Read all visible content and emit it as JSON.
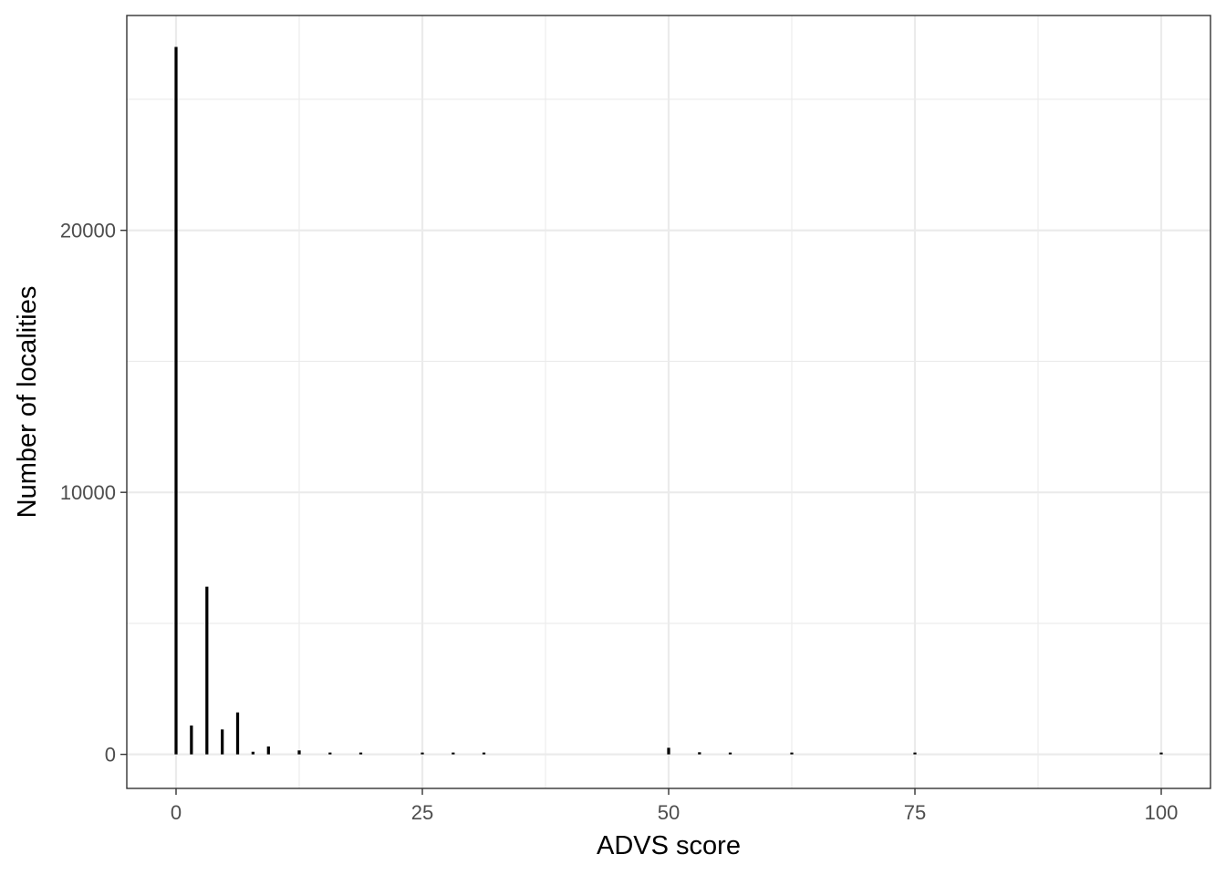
{
  "chart_data": {
    "type": "bar",
    "title": "",
    "xlabel": "ADVS score",
    "ylabel": "Number of localities",
    "xlim": [
      -5,
      105
    ],
    "ylim": [
      -1300,
      28200
    ],
    "x_ticks": [
      0,
      25,
      50,
      75,
      100
    ],
    "y_ticks": [
      0,
      10000,
      20000
    ],
    "grid": true,
    "legend": "none",
    "bar_color": "#000000",
    "bar_width": 0.3,
    "x": [
      0,
      1.56,
      3.13,
      4.69,
      6.25,
      7.81,
      9.38,
      12.5,
      15.63,
      18.75,
      25,
      28.13,
      31.25,
      50,
      53.13,
      56.25,
      62.5,
      75,
      100
    ],
    "values": [
      27000,
      1100,
      6400,
      950,
      1600,
      100,
      300,
      150,
      50,
      50,
      50,
      50,
      50,
      250,
      80,
      60,
      50,
      50,
      50
    ]
  }
}
